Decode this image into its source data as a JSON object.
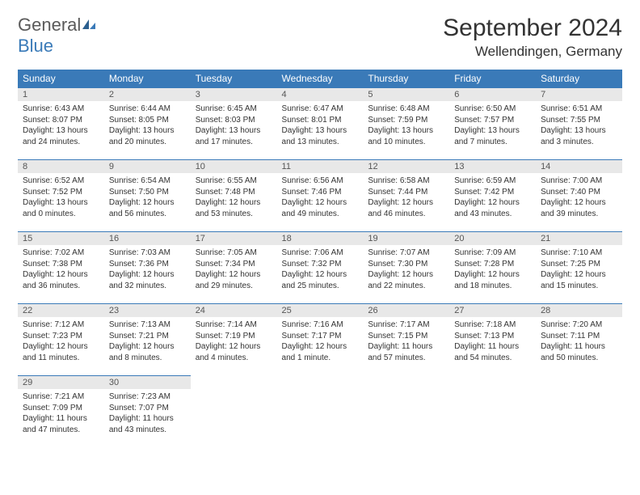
{
  "brand": {
    "word1": "General",
    "word2": "Blue"
  },
  "title": "September 2024",
  "location": "Wellendingen, Germany",
  "colors": {
    "header_bg": "#3a7ab8",
    "header_text": "#ffffff",
    "daynum_bg": "#e8e8e8",
    "border": "#3a7ab8",
    "logo_gray": "#5a5a5a",
    "logo_blue": "#3a7ab8"
  },
  "weekdays": [
    "Sunday",
    "Monday",
    "Tuesday",
    "Wednesday",
    "Thursday",
    "Friday",
    "Saturday"
  ],
  "weeks": [
    [
      {
        "n": "1",
        "sr": "6:43 AM",
        "ss": "8:07 PM",
        "dl": "13 hours and 24 minutes."
      },
      {
        "n": "2",
        "sr": "6:44 AM",
        "ss": "8:05 PM",
        "dl": "13 hours and 20 minutes."
      },
      {
        "n": "3",
        "sr": "6:45 AM",
        "ss": "8:03 PM",
        "dl": "13 hours and 17 minutes."
      },
      {
        "n": "4",
        "sr": "6:47 AM",
        "ss": "8:01 PM",
        "dl": "13 hours and 13 minutes."
      },
      {
        "n": "5",
        "sr": "6:48 AM",
        "ss": "7:59 PM",
        "dl": "13 hours and 10 minutes."
      },
      {
        "n": "6",
        "sr": "6:50 AM",
        "ss": "7:57 PM",
        "dl": "13 hours and 7 minutes."
      },
      {
        "n": "7",
        "sr": "6:51 AM",
        "ss": "7:55 PM",
        "dl": "13 hours and 3 minutes."
      }
    ],
    [
      {
        "n": "8",
        "sr": "6:52 AM",
        "ss": "7:52 PM",
        "dl": "13 hours and 0 minutes."
      },
      {
        "n": "9",
        "sr": "6:54 AM",
        "ss": "7:50 PM",
        "dl": "12 hours and 56 minutes."
      },
      {
        "n": "10",
        "sr": "6:55 AM",
        "ss": "7:48 PM",
        "dl": "12 hours and 53 minutes."
      },
      {
        "n": "11",
        "sr": "6:56 AM",
        "ss": "7:46 PM",
        "dl": "12 hours and 49 minutes."
      },
      {
        "n": "12",
        "sr": "6:58 AM",
        "ss": "7:44 PM",
        "dl": "12 hours and 46 minutes."
      },
      {
        "n": "13",
        "sr": "6:59 AM",
        "ss": "7:42 PM",
        "dl": "12 hours and 43 minutes."
      },
      {
        "n": "14",
        "sr": "7:00 AM",
        "ss": "7:40 PM",
        "dl": "12 hours and 39 minutes."
      }
    ],
    [
      {
        "n": "15",
        "sr": "7:02 AM",
        "ss": "7:38 PM",
        "dl": "12 hours and 36 minutes."
      },
      {
        "n": "16",
        "sr": "7:03 AM",
        "ss": "7:36 PM",
        "dl": "12 hours and 32 minutes."
      },
      {
        "n": "17",
        "sr": "7:05 AM",
        "ss": "7:34 PM",
        "dl": "12 hours and 29 minutes."
      },
      {
        "n": "18",
        "sr": "7:06 AM",
        "ss": "7:32 PM",
        "dl": "12 hours and 25 minutes."
      },
      {
        "n": "19",
        "sr": "7:07 AM",
        "ss": "7:30 PM",
        "dl": "12 hours and 22 minutes."
      },
      {
        "n": "20",
        "sr": "7:09 AM",
        "ss": "7:28 PM",
        "dl": "12 hours and 18 minutes."
      },
      {
        "n": "21",
        "sr": "7:10 AM",
        "ss": "7:25 PM",
        "dl": "12 hours and 15 minutes."
      }
    ],
    [
      {
        "n": "22",
        "sr": "7:12 AM",
        "ss": "7:23 PM",
        "dl": "12 hours and 11 minutes."
      },
      {
        "n": "23",
        "sr": "7:13 AM",
        "ss": "7:21 PM",
        "dl": "12 hours and 8 minutes."
      },
      {
        "n": "24",
        "sr": "7:14 AM",
        "ss": "7:19 PM",
        "dl": "12 hours and 4 minutes."
      },
      {
        "n": "25",
        "sr": "7:16 AM",
        "ss": "7:17 PM",
        "dl": "12 hours and 1 minute."
      },
      {
        "n": "26",
        "sr": "7:17 AM",
        "ss": "7:15 PM",
        "dl": "11 hours and 57 minutes."
      },
      {
        "n": "27",
        "sr": "7:18 AM",
        "ss": "7:13 PM",
        "dl": "11 hours and 54 minutes."
      },
      {
        "n": "28",
        "sr": "7:20 AM",
        "ss": "7:11 PM",
        "dl": "11 hours and 50 minutes."
      }
    ],
    [
      {
        "n": "29",
        "sr": "7:21 AM",
        "ss": "7:09 PM",
        "dl": "11 hours and 47 minutes."
      },
      {
        "n": "30",
        "sr": "7:23 AM",
        "ss": "7:07 PM",
        "dl": "11 hours and 43 minutes."
      },
      null,
      null,
      null,
      null,
      null
    ]
  ],
  "labels": {
    "sunrise": "Sunrise:",
    "sunset": "Sunset:",
    "daylight": "Daylight:"
  }
}
